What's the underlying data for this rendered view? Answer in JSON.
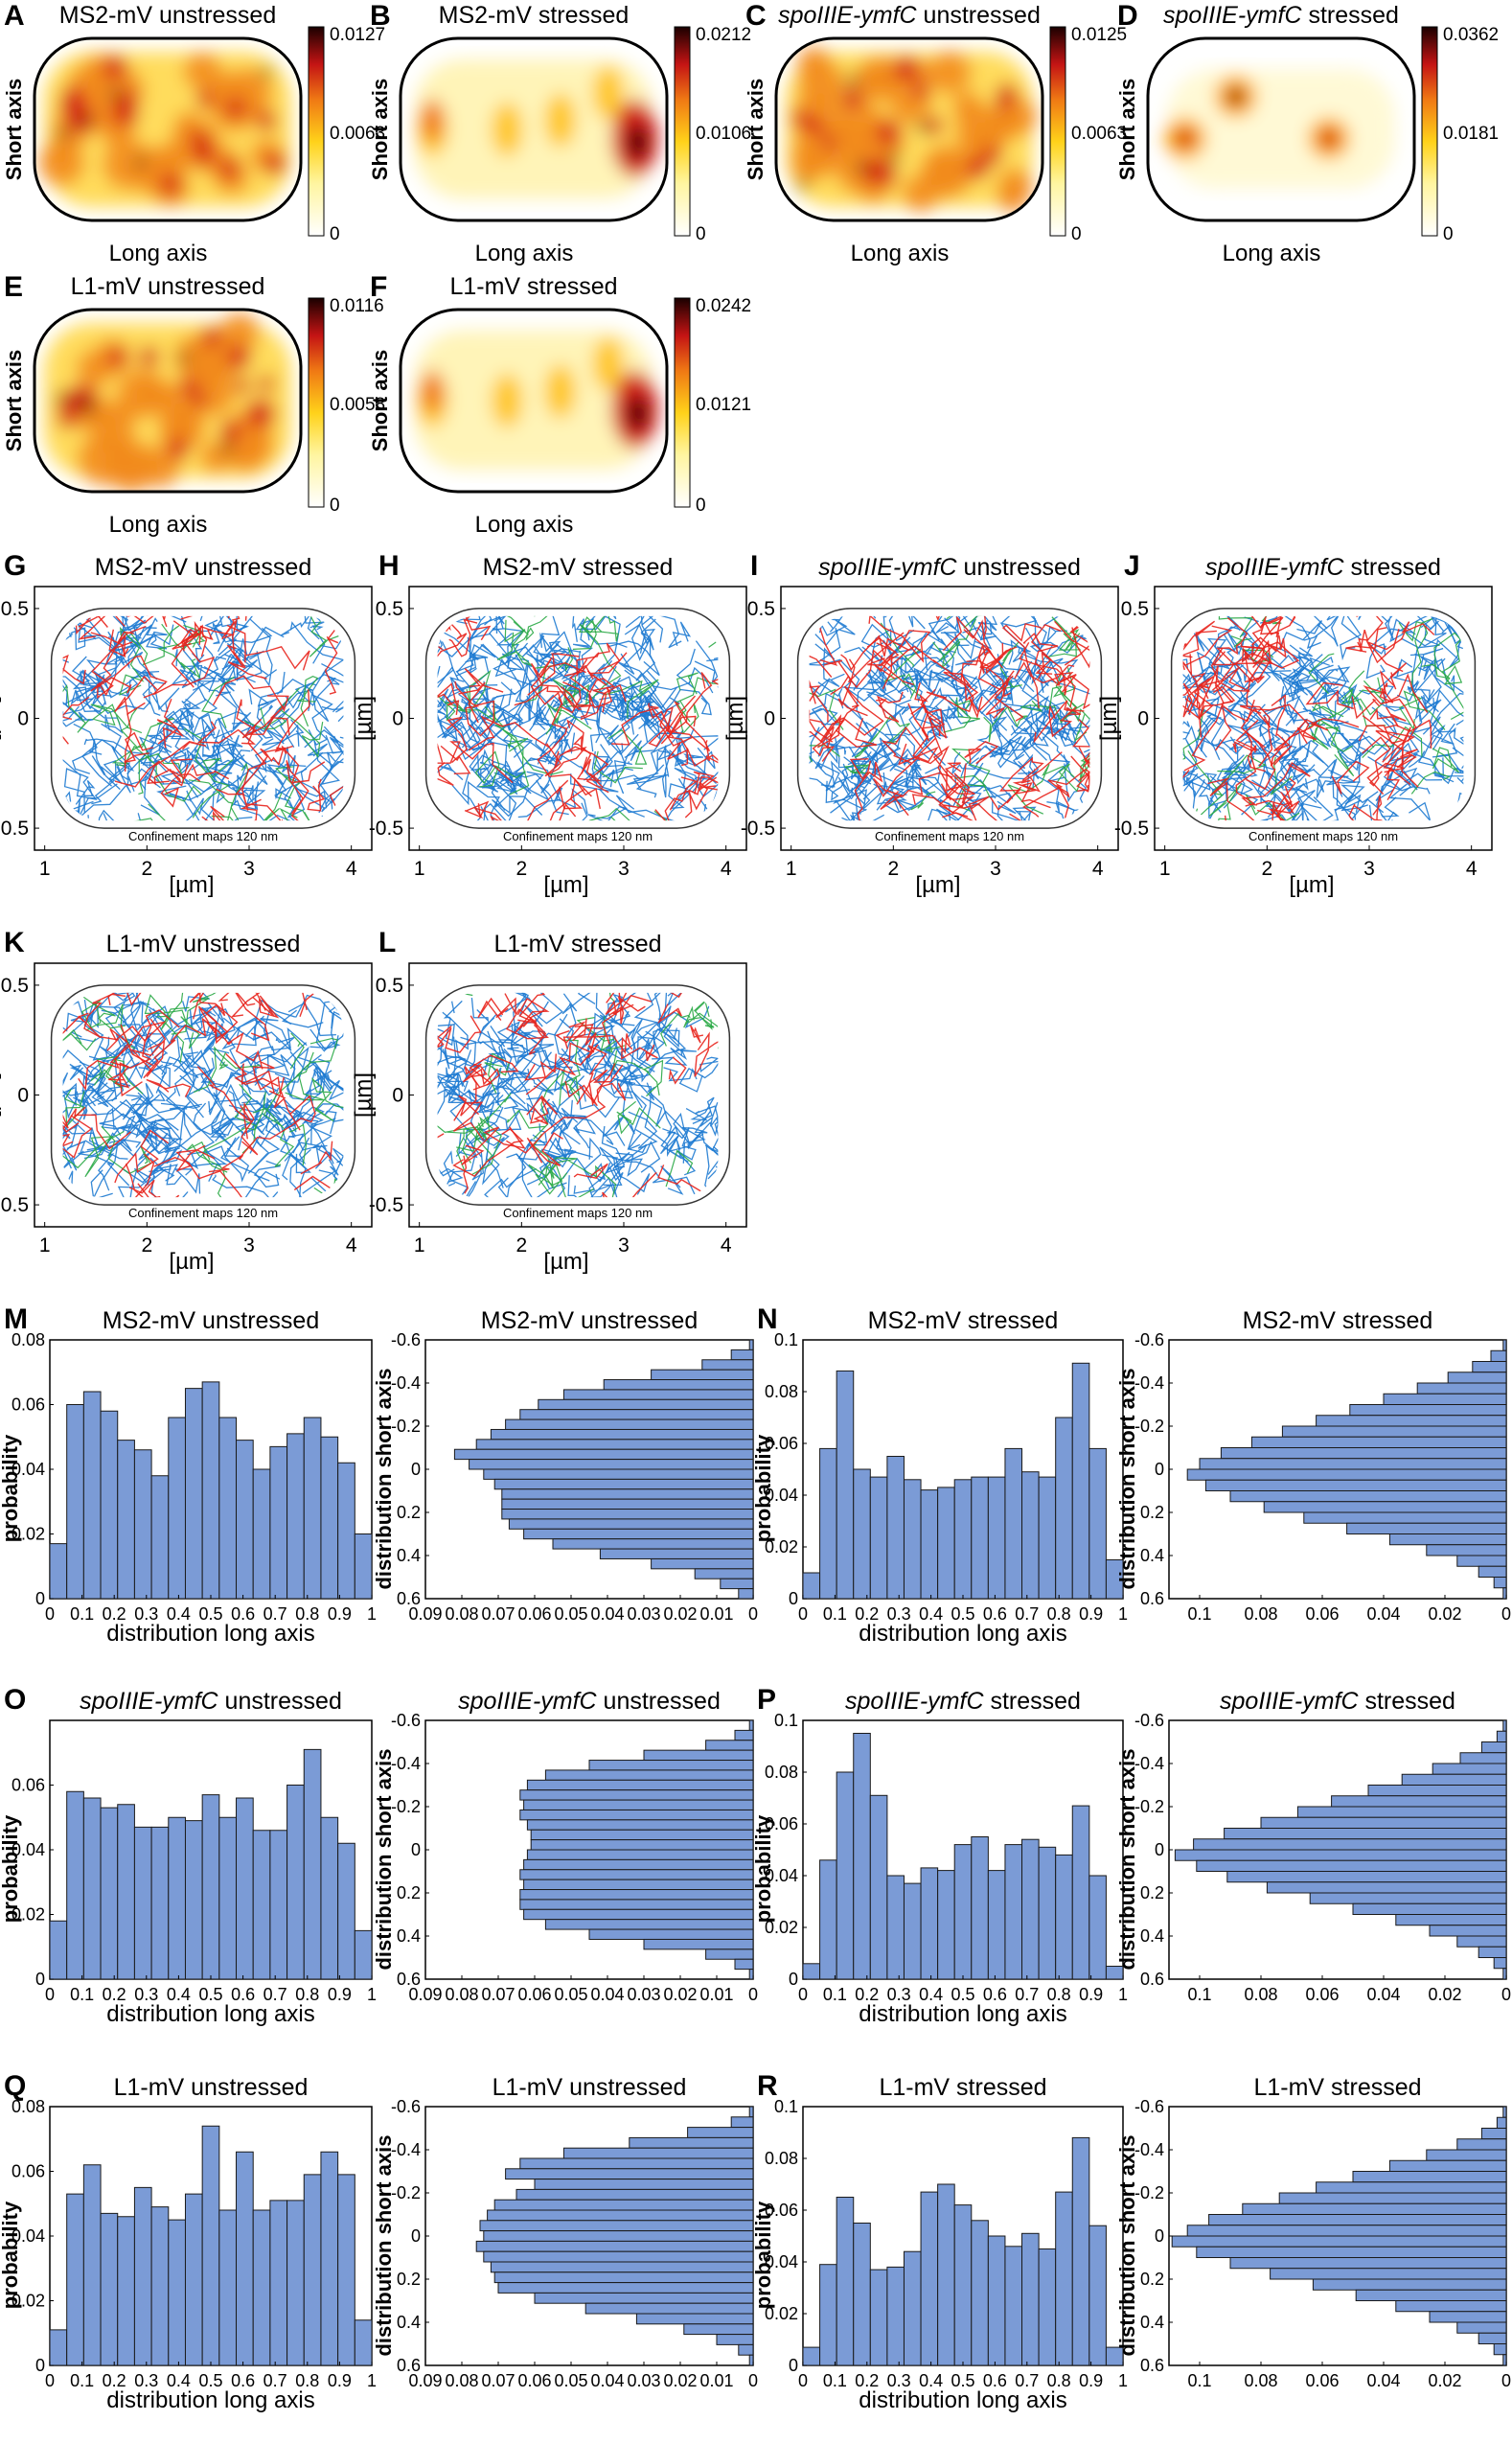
{
  "colors": {
    "bar_fill": "#7b9bd6",
    "track_blue": "#1f7bd2",
    "track_red": "#e8231c",
    "track_green": "#29a845",
    "heat_low": "#ffffff",
    "heat_mid": "#ffd21a",
    "heat_high": "#d4201a",
    "heat_max": "#1a0000"
  },
  "heatmaps": [
    {
      "label": "A",
      "title": "MS2-mV unstressed",
      "title_italic": "",
      "short_axis": "Short axis",
      "long_axis": "Long axis",
      "cbar": [
        "0.0127",
        "0.0063",
        "0"
      ],
      "pattern": "dispersed"
    },
    {
      "label": "B",
      "title": "MS2-mV stressed",
      "title_italic": "",
      "short_axis": "Short axis",
      "long_axis": "Long axis",
      "cbar": [
        "0.0212",
        "0.0106",
        "0"
      ],
      "pattern": "polar"
    },
    {
      "label": "C",
      "title": " unstressed",
      "title_italic": "spoIIIE-ymfC",
      "short_axis": "Short axis",
      "long_axis": "Long axis",
      "cbar": [
        "0.0125",
        "0.0063",
        "0"
      ],
      "pattern": "dispersed"
    },
    {
      "label": "D",
      "title": " stressed",
      "title_italic": "spoIIIE-ymfC",
      "short_axis": "Short axis",
      "long_axis": "Long axis",
      "cbar": [
        "0.0362",
        "0.0181",
        "0"
      ],
      "pattern": "foci"
    },
    {
      "label": "E",
      "title": "L1-mV unstressed",
      "title_italic": "",
      "short_axis": "Short axis",
      "long_axis": "Long axis",
      "cbar": [
        "0.0116",
        "0.0058",
        "0"
      ],
      "pattern": "dispersed"
    },
    {
      "label": "F",
      "title": "L1-mV stressed",
      "title_italic": "",
      "short_axis": "Short axis",
      "long_axis": "Long axis",
      "cbar": [
        "0.0242",
        "0.0121",
        "0"
      ],
      "pattern": "polar"
    }
  ],
  "trackmaps": [
    {
      "label": "G",
      "title": "MS2-mV unstressed",
      "title_italic": "",
      "note": "Confinement maps 120 nm",
      "xlabel": "[µm]",
      "ylabel": "[µm]",
      "xticks": [
        "1",
        "2",
        "3",
        "4"
      ],
      "yticks": [
        "0.5",
        "0",
        "-0.5"
      ],
      "xlim": [
        0.9,
        4.2
      ],
      "ylim": [
        -0.6,
        0.6
      ],
      "red_share": 0.3
    },
    {
      "label": "H",
      "title": "MS2-mV stressed",
      "title_italic": "",
      "note": "Confinement maps 120 nm",
      "xlabel": "[µm]",
      "ylabel": "[µm]",
      "xticks": [
        "1",
        "2",
        "3",
        "4"
      ],
      "yticks": [
        "0.5",
        "0",
        "-0.5"
      ],
      "xlim": [
        0.9,
        4.2
      ],
      "ylim": [
        -0.6,
        0.6
      ],
      "red_share": 0.3
    },
    {
      "label": "I",
      "title": " unstressed",
      "title_italic": "spoIIIE-ymfC",
      "note": "Confinement maps 120 nm",
      "xlabel": "[µm]",
      "ylabel": "[µm]",
      "xticks": [
        "1",
        "2",
        "3",
        "4"
      ],
      "yticks": [
        "0.5",
        "0",
        "-0.5"
      ],
      "xlim": [
        0.9,
        4.2
      ],
      "ylim": [
        -0.6,
        0.6
      ],
      "red_share": 0.45
    },
    {
      "label": "J",
      "title": " stressed",
      "title_italic": "spoIIIE-ymfC",
      "note": "Confinement maps 120 nm",
      "xlabel": "[µm]",
      "ylabel": "[µm]",
      "xticks": [
        "1",
        "2",
        "3",
        "4"
      ],
      "yticks": [
        "0.5",
        "0",
        "-0.5"
      ],
      "xlim": [
        0.9,
        4.2
      ],
      "ylim": [
        -0.6,
        0.6
      ],
      "red_share": 0.4
    },
    {
      "label": "K",
      "title": "L1-mV unstressed",
      "title_italic": "",
      "note": "Confinement maps 120 nm",
      "xlabel": "[µm]",
      "ylabel": "[µm]",
      "xticks": [
        "1",
        "2",
        "3",
        "4"
      ],
      "yticks": [
        "0.5",
        "0",
        "-0.5"
      ],
      "xlim": [
        0.9,
        4.2
      ],
      "ylim": [
        -0.6,
        0.6
      ],
      "red_share": 0.25
    },
    {
      "label": "L",
      "title": "L1-mV stressed",
      "title_italic": "",
      "note": "Confinement maps 120 nm",
      "xlabel": "[µm]",
      "ylabel": "[µm]",
      "xticks": [
        "1",
        "2",
        "3",
        "4"
      ],
      "yticks": [
        "0.5",
        "0",
        "-0.5"
      ],
      "xlim": [
        0.9,
        4.2
      ],
      "ylim": [
        -0.6,
        0.6
      ],
      "red_share": 0.25
    }
  ],
  "chart_data": [
    {
      "panel": "M",
      "type": "bar",
      "title": "MS2-mV unstressed",
      "title_italic": "",
      "xlabel": "distribution long axis",
      "ylabel": "probability",
      "ylim": [
        0,
        0.08
      ],
      "yticks": [
        "0.08",
        "0.06",
        "0.04",
        "0.02",
        "0"
      ],
      "xticks": [
        "0",
        "0.1",
        "0.2",
        "0.3",
        "0.4",
        "0.5",
        "0.6",
        "0.7",
        "0.8",
        "0.9",
        "1"
      ],
      "values": [
        0.017,
        0.06,
        0.064,
        0.058,
        0.049,
        0.046,
        0.038,
        0.056,
        0.065,
        0.067,
        0.056,
        0.049,
        0.04,
        0.047,
        0.051,
        0.056,
        0.05,
        0.042,
        0.02
      ]
    },
    {
      "panel": "M2",
      "type": "barh",
      "title": "MS2-mV unstressed",
      "title_italic": "",
      "xlabel": "",
      "ylabel": "distribution short axis",
      "xlim": [
        0.09,
        0
      ],
      "xticks": [
        "0.09",
        "0.08",
        "0.07",
        "0.06",
        "0.05",
        "0.04",
        "0.03",
        "0.02",
        "0.01",
        "0"
      ],
      "yticks": [
        "-0.6",
        "-0.4",
        "-0.2",
        "0",
        "0.2",
        "0.4",
        "0.6"
      ],
      "values": [
        0.001,
        0.006,
        0.014,
        0.028,
        0.041,
        0.052,
        0.059,
        0.064,
        0.068,
        0.072,
        0.076,
        0.082,
        0.078,
        0.074,
        0.071,
        0.069,
        0.069,
        0.069,
        0.067,
        0.063,
        0.055,
        0.042,
        0.028,
        0.016,
        0.009,
        0.004
      ]
    },
    {
      "panel": "N",
      "type": "bar",
      "title": "MS2-mV stressed",
      "title_italic": "",
      "xlabel": "distribution long axis",
      "ylabel": "probability",
      "ylim": [
        0,
        0.1
      ],
      "yticks": [
        "0.1",
        "0.08",
        "0.06",
        "0.04",
        "0.02",
        "0"
      ],
      "xticks": [
        "0",
        "0.1",
        "0.2",
        "0.3",
        "0.4",
        "0.5",
        "0.6",
        "0.7",
        "0.8",
        "0.9",
        "1"
      ],
      "values": [
        0.01,
        0.058,
        0.088,
        0.05,
        0.047,
        0.055,
        0.046,
        0.042,
        0.043,
        0.046,
        0.047,
        0.047,
        0.058,
        0.049,
        0.047,
        0.07,
        0.091,
        0.058,
        0.015
      ]
    },
    {
      "panel": "N2",
      "type": "barh",
      "title": "MS2-mV stressed",
      "title_italic": "",
      "xlabel": "",
      "ylabel": "distribution short axis",
      "xlim": [
        0.11,
        0
      ],
      "xticks": [
        "0.1",
        "0.08",
        "0.06",
        "0.04",
        "0.02",
        "0"
      ],
      "yticks": [
        "-0.6",
        "-0.4",
        "-0.2",
        "0",
        "0.2",
        "0.4",
        "0.6"
      ],
      "values": [
        0.001,
        0.005,
        0.011,
        0.019,
        0.029,
        0.04,
        0.051,
        0.062,
        0.073,
        0.083,
        0.093,
        0.1,
        0.104,
        0.098,
        0.09,
        0.079,
        0.066,
        0.052,
        0.038,
        0.026,
        0.016,
        0.009,
        0.004,
        0.001
      ]
    },
    {
      "panel": "O",
      "type": "bar",
      "title": " unstressed",
      "title_italic": "spoIIIE-ymfC",
      "xlabel": "distribution long axis",
      "ylabel": "probability",
      "ylim": [
        0,
        0.08
      ],
      "yticks": [
        "0.06",
        "0.04",
        "0.02",
        "0"
      ],
      "xticks": [
        "0",
        "0.1",
        "0.2",
        "0.3",
        "0.4",
        "0.5",
        "0.6",
        "0.7",
        "0.8",
        "0.9",
        "1"
      ],
      "values": [
        0.018,
        0.058,
        0.056,
        0.053,
        0.054,
        0.047,
        0.047,
        0.05,
        0.049,
        0.057,
        0.05,
        0.056,
        0.046,
        0.046,
        0.06,
        0.071,
        0.05,
        0.042,
        0.015
      ]
    },
    {
      "panel": "O2",
      "type": "barh",
      "title": " unstressed",
      "title_italic": "spoIIIE-ymfC",
      "xlabel": "",
      "ylabel": "distribution short axis",
      "xlim": [
        0.09,
        0
      ],
      "xticks": [
        "0.09",
        "0.08",
        "0.07",
        "0.06",
        "0.05",
        "0.04",
        "0.03",
        "0.02",
        "0.01",
        "0"
      ],
      "yticks": [
        "-0.6",
        "-0.4",
        "-0.2",
        "0",
        "0.2",
        "0.4",
        "0.6"
      ],
      "values": [
        0.001,
        0.005,
        0.013,
        0.03,
        0.045,
        0.057,
        0.062,
        0.064,
        0.063,
        0.064,
        0.062,
        0.061,
        0.061,
        0.062,
        0.063,
        0.064,
        0.063,
        0.064,
        0.064,
        0.063,
        0.057,
        0.045,
        0.03,
        0.013,
        0.005,
        0.001
      ]
    },
    {
      "panel": "P",
      "type": "bar",
      "title": " stressed",
      "title_italic": "spoIIIE-ymfC",
      "xlabel": "distribution long axis",
      "ylabel": "probability",
      "ylim": [
        0,
        0.1
      ],
      "yticks": [
        "0.1",
        "0.08",
        "0.06",
        "0.04",
        "0.02",
        "0"
      ],
      "xticks": [
        "0",
        "0.1",
        "0.2",
        "0.3",
        "0.4",
        "0.5",
        "0.6",
        "0.7",
        "0.8",
        "0.9",
        "1"
      ],
      "values": [
        0.006,
        0.046,
        0.08,
        0.095,
        0.071,
        0.04,
        0.037,
        0.043,
        0.042,
        0.052,
        0.055,
        0.042,
        0.052,
        0.054,
        0.051,
        0.048,
        0.067,
        0.04,
        0.005
      ]
    },
    {
      "panel": "P2",
      "type": "barh",
      "title": " stressed",
      "title_italic": "spoIIIE-ymfC",
      "xlabel": "",
      "ylabel": "distribution short axis",
      "xlim": [
        0.11,
        0
      ],
      "xticks": [
        "0.1",
        "0.08",
        "0.06",
        "0.04",
        "0.02",
        "0"
      ],
      "yticks": [
        "-0.6",
        "-0.4",
        "-0.2",
        "0",
        "0.2",
        "0.4",
        "0.6"
      ],
      "values": [
        0.001,
        0.003,
        0.008,
        0.015,
        0.024,
        0.034,
        0.045,
        0.057,
        0.068,
        0.08,
        0.092,
        0.102,
        0.108,
        0.101,
        0.091,
        0.078,
        0.064,
        0.05,
        0.036,
        0.025,
        0.016,
        0.009,
        0.004,
        0.001
      ]
    },
    {
      "panel": "Q",
      "type": "bar",
      "title": "L1-mV unstressed",
      "title_italic": "",
      "xlabel": "distribution long axis",
      "ylabel": "probability",
      "ylim": [
        0,
        0.08
      ],
      "yticks": [
        "0.08",
        "0.06",
        "0.04",
        "0.02",
        "0"
      ],
      "xticks": [
        "0",
        "0.1",
        "0.2",
        "0.3",
        "0.4",
        "0.5",
        "0.6",
        "0.7",
        "0.8",
        "0.9",
        "1"
      ],
      "values": [
        0.011,
        0.053,
        0.062,
        0.047,
        0.046,
        0.055,
        0.049,
        0.045,
        0.053,
        0.074,
        0.048,
        0.066,
        0.048,
        0.051,
        0.051,
        0.059,
        0.066,
        0.059,
        0.014
      ]
    },
    {
      "panel": "Q2",
      "type": "barh",
      "title": "L1-mV unstressed",
      "title_italic": "",
      "xlabel": "",
      "ylabel": "distribution short axis",
      "xlim": [
        0.09,
        0
      ],
      "xticks": [
        "0.09",
        "0.08",
        "0.07",
        "0.06",
        "0.05",
        "0.04",
        "0.03",
        "0.02",
        "0.01",
        "0"
      ],
      "yticks": [
        "-0.6",
        "-0.4",
        "-0.2",
        "0",
        "0.2",
        "0.4",
        "0.6"
      ],
      "values": [
        0.001,
        0.006,
        0.018,
        0.034,
        0.052,
        0.064,
        0.068,
        0.06,
        0.065,
        0.071,
        0.073,
        0.075,
        0.074,
        0.076,
        0.074,
        0.072,
        0.071,
        0.07,
        0.06,
        0.046,
        0.032,
        0.019,
        0.01,
        0.004,
        0.001
      ]
    },
    {
      "panel": "R",
      "type": "bar",
      "title": "L1-mV stressed",
      "title_italic": "",
      "xlabel": "distribution long axis",
      "ylabel": "probability",
      "ylim": [
        0,
        0.1
      ],
      "yticks": [
        "0.1",
        "0.08",
        "0.06",
        "0.04",
        "0.02",
        "0"
      ],
      "xticks": [
        "0",
        "0.1",
        "0.2",
        "0.3",
        "0.4",
        "0.5",
        "0.6",
        "0.7",
        "0.8",
        "0.9",
        "1"
      ],
      "values": [
        0.007,
        0.039,
        0.065,
        0.055,
        0.037,
        0.038,
        0.044,
        0.067,
        0.07,
        0.062,
        0.056,
        0.05,
        0.046,
        0.051,
        0.045,
        0.067,
        0.088,
        0.054,
        0.007
      ]
    },
    {
      "panel": "R2",
      "type": "barh",
      "title": "L1-mV stressed",
      "title_italic": "",
      "xlabel": "",
      "ylabel": "distribution short axis",
      "xlim": [
        0.11,
        0
      ],
      "xticks": [
        "0.1",
        "0.08",
        "0.06",
        "0.04",
        "0.02",
        "0"
      ],
      "yticks": [
        "-0.6",
        "-0.4",
        "-0.2",
        "0",
        "0.2",
        "0.4",
        "0.6"
      ],
      "values": [
        0.001,
        0.003,
        0.008,
        0.016,
        0.026,
        0.038,
        0.05,
        0.062,
        0.074,
        0.086,
        0.097,
        0.104,
        0.109,
        0.101,
        0.09,
        0.077,
        0.063,
        0.049,
        0.036,
        0.025,
        0.016,
        0.009,
        0.004,
        0.001
      ]
    }
  ]
}
